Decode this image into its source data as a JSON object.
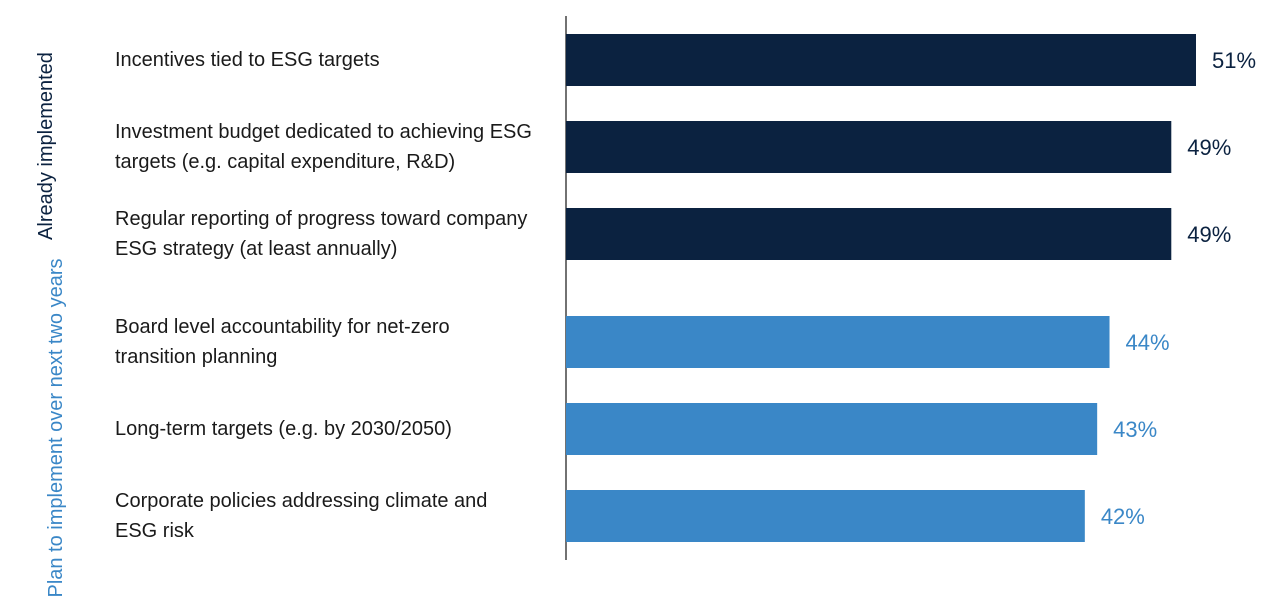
{
  "chart_data": {
    "type": "bar",
    "orientation": "horizontal",
    "title": "",
    "xlabel": "",
    "ylabel": "",
    "xlim": [
      0,
      56
    ],
    "grid": false,
    "groups": [
      {
        "label": "Already implemented",
        "color": "#0b2240"
      },
      {
        "label": "Plan to implement over next two years",
        "color": "#3a87c7"
      }
    ],
    "categories": [
      "Incentives tied to ESG targets",
      "Investment budget dedicated to achieving ESG targets (e.g. capital expenditure, R&D)",
      "Regular reporting of progress toward company ESG strategy (at least annually)",
      "Board level accountability for net-zero transition planning",
      "Long-term targets (e.g. by 2030/2050)",
      "Corporate policies addressing climate and ESG risk"
    ],
    "values": [
      51,
      49,
      49,
      44,
      43,
      42
    ],
    "value_labels": [
      "51%",
      "49%",
      "49%",
      "44%",
      "43%",
      "42%"
    ],
    "category_group": [
      0,
      0,
      0,
      1,
      1,
      1
    ]
  }
}
